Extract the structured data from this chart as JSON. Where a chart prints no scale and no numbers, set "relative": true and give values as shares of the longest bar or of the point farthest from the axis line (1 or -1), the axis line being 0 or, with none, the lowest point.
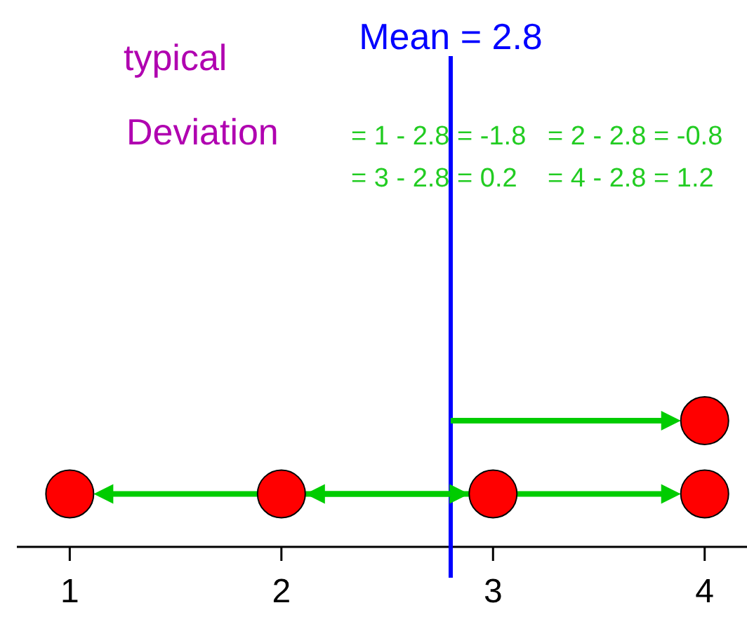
{
  "chart_data": {
    "type": "scatter",
    "relative": true,
    "x": [
      1,
      2,
      3,
      4,
      4
    ],
    "values": [
      0.42,
      0.42,
      0.42,
      0.42,
      1
    ],
    "color": "#ff0000",
    "marker": "circle",
    "xlim": [
      0.75,
      4.2
    ],
    "xticks": [
      1,
      2,
      3,
      4
    ],
    "tick_labels": "x",
    "grid": false,
    "ref_lines": [
      {
        "axis": "x",
        "value": 2.8,
        "label": "Mean = 2.8",
        "color": "#0000ff"
      }
    ],
    "annotations": [
      "typical",
      "Deviation",
      "= 1 - 2.8 = -1.8",
      "= 2 - 2.8 = -0.8",
      "= 3 - 2.8 = 0.2",
      "= 4 - 2.8 = 1.2"
    ]
  }
}
